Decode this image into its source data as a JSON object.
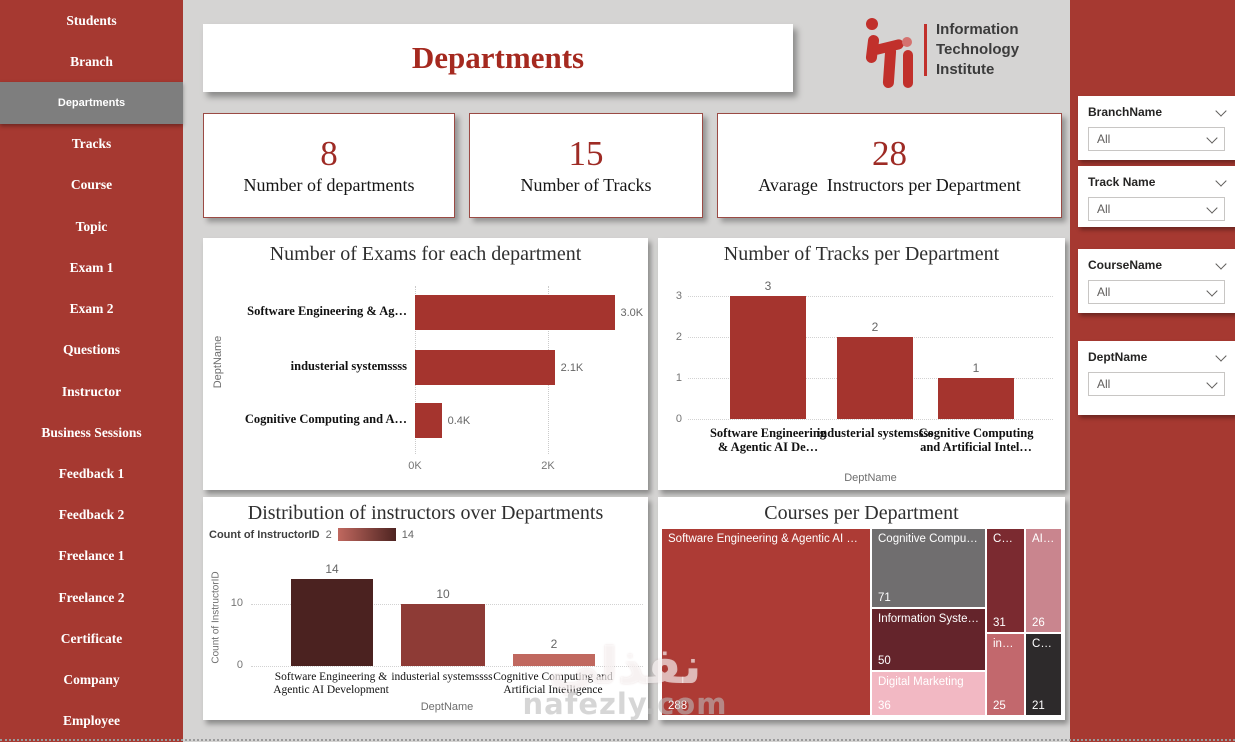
{
  "page": {
    "background": "#D5D4D3",
    "accent_red": "#A63931",
    "bar_red": "#A5342E",
    "watermark": {
      "arabic": "نفذلي",
      "domain": "nafezly.com"
    }
  },
  "sidebar": {
    "items": [
      {
        "label": "Students",
        "active": false
      },
      {
        "label": "Branch",
        "active": false
      },
      {
        "label": "Departments",
        "active": true
      },
      {
        "label": "Tracks",
        "active": false
      },
      {
        "label": "Course",
        "active": false
      },
      {
        "label": "Topic",
        "active": false
      },
      {
        "label": "Exam 1",
        "active": false
      },
      {
        "label": "Exam 2",
        "active": false
      },
      {
        "label": "Questions",
        "active": false
      },
      {
        "label": "Instructor",
        "active": false
      },
      {
        "label": "Business Sessions",
        "active": false
      },
      {
        "label": "Feedback 1",
        "active": false
      },
      {
        "label": "Feedback 2",
        "active": false
      },
      {
        "label": "Freelance 1",
        "active": false
      },
      {
        "label": "Freelance 2",
        "active": false
      },
      {
        "label": "Certificate",
        "active": false
      },
      {
        "label": "Company",
        "active": false
      },
      {
        "label": "Employee",
        "active": false
      }
    ]
  },
  "header": {
    "title": "Departments",
    "logo": {
      "line1": "Information",
      "line2": "Technology",
      "line3": "Institute"
    }
  },
  "kpis": [
    {
      "value": "8",
      "label": "Number of departments"
    },
    {
      "value": "15",
      "label": "Number of Tracks"
    },
    {
      "value": "28",
      "label": "Avarage  Instructors per Department"
    }
  ],
  "filters": [
    {
      "label": "BranchName",
      "value": "All"
    },
    {
      "label": "Track Name",
      "value": "All"
    },
    {
      "label": "CourseName",
      "value": "All"
    },
    {
      "label": "DeptName",
      "value": "All"
    }
  ],
  "chart_data": [
    {
      "type": "bar",
      "orientation": "horizontal",
      "title": "Number of Exams for each department",
      "y_axis_title": "DeptName",
      "categories": [
        "Software Engineering & Ag…",
        "industerial systemssss",
        "Cognitive Computing and A…"
      ],
      "values": [
        3000,
        2100,
        400
      ],
      "value_labels": [
        "3.0K",
        "2.1K",
        "0.4K"
      ],
      "x_ticks": [
        "0K",
        "2K"
      ],
      "xlim": [
        0,
        3300
      ],
      "bar_color": "#A5342E",
      "grid": "dotted-vertical"
    },
    {
      "type": "bar",
      "orientation": "vertical",
      "title": "Number of Tracks per Department",
      "x_axis_title": "DeptName",
      "categories": [
        "Software Engineering & Agentic AI De…",
        "industerial systemssss",
        "Cognitive Computing and Artificial Intel…"
      ],
      "values": [
        3,
        2,
        1
      ],
      "y_ticks": [
        0,
        1,
        2,
        3
      ],
      "ylim": [
        0,
        3
      ],
      "bar_color": "#A5342E",
      "grid": "dotted-horizontal"
    },
    {
      "type": "bar",
      "orientation": "vertical",
      "title": "Distribution of instructors over Departments",
      "x_axis_title": "DeptName",
      "y_axis_title": "Count of InstructorID",
      "legend": {
        "title": "Count of InstructorID",
        "min": 2,
        "max": 14,
        "gradient": [
          "#C0685F",
          "#4E2421"
        ],
        "position": "top-left"
      },
      "categories": [
        "Software Engineering & Agentic AI Development",
        "industerial systemssss",
        "Cognitive Computing and Artificial Intelligence"
      ],
      "values": [
        14,
        10,
        2
      ],
      "bar_colors": [
        "#4B2220",
        "#8E3B36",
        "#C0685F"
      ],
      "y_ticks": [
        0,
        10
      ],
      "ylim": [
        0,
        15
      ],
      "grid": "dotted-horizontal"
    },
    {
      "type": "treemap",
      "title": "Courses per Department",
      "tiles": [
        {
          "label": "Software Engineering & Agentic AI Deve...",
          "value": 288,
          "color": "#AD3B35"
        },
        {
          "label": "Cognitive Computin...",
          "value": 71,
          "color": "#706E6F"
        },
        {
          "label": "Information Systems",
          "value": 50,
          "color": "#64242B"
        },
        {
          "label": "Digital Marketing",
          "value": 36,
          "color": "#F2B8C3"
        },
        {
          "label": "Cont...",
          "value": 31,
          "color": "#7B2A30"
        },
        {
          "label": "AI-...",
          "value": 26,
          "color": "#C9858E"
        },
        {
          "label": "indu...",
          "value": 25,
          "color": "#C2686D"
        },
        {
          "label": "Cyb...",
          "value": 21,
          "color": "#2D2A2B"
        }
      ]
    }
  ]
}
